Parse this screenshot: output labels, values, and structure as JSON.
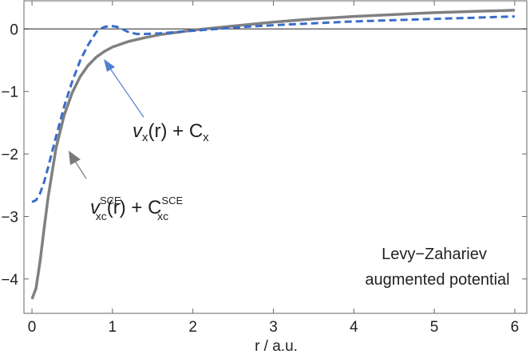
{
  "chart_data": {
    "type": "line",
    "title": "",
    "xlabel": "r / a.u.",
    "ylabel": "",
    "xlim": [
      -0.1,
      6.15
    ],
    "ylim": [
      -4.55,
      0.45
    ],
    "x_ticks": [
      "0",
      "1",
      "2",
      "3",
      "4",
      "5",
      "6"
    ],
    "y_ticks": [
      "0",
      "−1",
      "−2",
      "−3",
      "−4"
    ],
    "zero_line": true,
    "grid": false,
    "legend": "none",
    "series": [
      {
        "name": "",
        "label_text": "v_xc^SCE(r) + C_xc^SCE",
        "color": "#808080",
        "style": "solid",
        "x": [
          0.0,
          0.05,
          0.1,
          0.15,
          0.2,
          0.3,
          0.4,
          0.5,
          0.6,
          0.7,
          0.8,
          0.9,
          1.0,
          1.2,
          1.4,
          1.6,
          1.8,
          2.0,
          2.3,
          2.6,
          3.0,
          3.5,
          4.0,
          4.5,
          5.0,
          5.5,
          6.0
        ],
        "values": [
          -4.32,
          -4.15,
          -3.72,
          -3.2,
          -2.7,
          -1.9,
          -1.38,
          -1.02,
          -0.76,
          -0.58,
          -0.45,
          -0.36,
          -0.29,
          -0.2,
          -0.14,
          -0.09,
          -0.055,
          -0.02,
          0.02,
          0.06,
          0.11,
          0.16,
          0.2,
          0.23,
          0.26,
          0.28,
          0.3
        ]
      },
      {
        "name": "",
        "label_text": "v_x(r) + C_x",
        "color": "#3a6cc8",
        "style": "dashed",
        "x": [
          0.0,
          0.05,
          0.1,
          0.15,
          0.2,
          0.3,
          0.4,
          0.5,
          0.6,
          0.7,
          0.8,
          0.85,
          0.9,
          0.95,
          1.0,
          1.05,
          1.1,
          1.2,
          1.3,
          1.4,
          1.6,
          1.8,
          2.0,
          2.3,
          2.6,
          3.0,
          3.5,
          4.0,
          4.5,
          5.0,
          5.5,
          6.0
        ],
        "values": [
          -2.77,
          -2.74,
          -2.63,
          -2.45,
          -2.22,
          -1.72,
          -1.24,
          -0.84,
          -0.5,
          -0.25,
          -0.05,
          0.0,
          0.03,
          0.045,
          0.045,
          0.035,
          0.01,
          -0.05,
          -0.08,
          -0.08,
          -0.07,
          -0.05,
          -0.03,
          0.0,
          0.03,
          0.06,
          0.09,
          0.12,
          0.14,
          0.16,
          0.18,
          0.2
        ]
      }
    ],
    "annotations": {
      "vx": {
        "main": "v",
        "sub": "x",
        "rest": "(r) + C",
        "sub2": "x"
      },
      "vxc": {
        "main": "v",
        "sup": "SCE",
        "sub": "xc",
        "rest": "(r) + C",
        "sup2": "SCE",
        "sub2": "xc"
      },
      "note_line1": "Levy−Zahariev",
      "note_line2": "augmented potential"
    }
  }
}
